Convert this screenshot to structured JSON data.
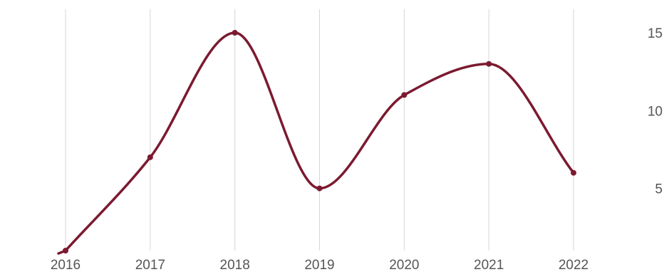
{
  "chart_data": {
    "type": "line",
    "title": "",
    "xlabel": "",
    "ylabel": "",
    "x": [
      2016,
      2017,
      2018,
      2019,
      2020,
      2021,
      2022
    ],
    "series": [
      {
        "values": [
          1,
          7,
          15,
          5,
          11,
          13,
          6
        ]
      }
    ],
    "x_ticks": [
      "2016",
      "2017",
      "2018",
      "2019",
      "2020",
      "2021",
      "2022"
    ],
    "y_ticks": [
      5,
      10,
      15
    ],
    "ylim": [
      1,
      16
    ],
    "y_axis_side": "right",
    "grid": {
      "vertical": true,
      "horizontal": false
    },
    "line_style": "smooth",
    "colors": {
      "series": "#7b1a30",
      "grid": "#d6d6d6",
      "text": "#555555"
    }
  }
}
